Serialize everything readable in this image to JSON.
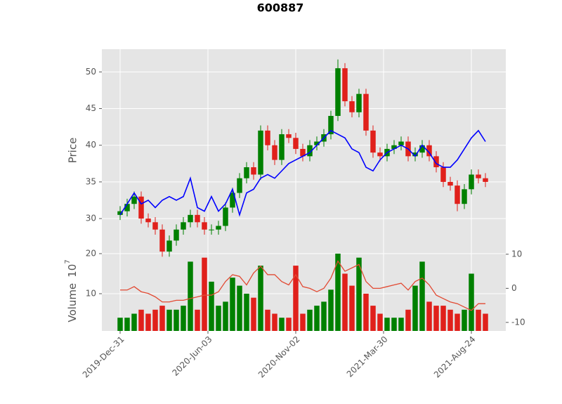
{
  "chart_data": {
    "type": "candlestick",
    "title": "600887",
    "y_label": "Price",
    "volume_label": "Volume",
    "volume_offset_base": "10",
    "volume_offset_exponent": "7",
    "x": [
      0,
      8,
      16,
      24,
      32,
      40,
      48,
      56,
      64,
      72,
      80,
      88,
      96,
      104,
      112,
      120,
      128,
      136,
      144,
      152,
      160,
      168,
      176,
      184,
      192,
      200,
      208,
      216,
      224,
      232,
      240,
      248,
      256,
      264,
      272,
      280,
      288,
      296,
      304,
      312,
      320,
      328,
      336,
      344,
      352,
      360,
      368,
      376,
      384,
      392,
      400,
      408,
      416
    ],
    "xlim": [
      -20.8,
      439.2
    ],
    "xticks": [
      {
        "value": 0,
        "label": "2019-Dec-31"
      },
      {
        "value": 100,
        "label": "2020-Jun-03"
      },
      {
        "value": 200,
        "label": "2020-Nov-02"
      },
      {
        "value": 300,
        "label": "2021-Mar-30"
      },
      {
        "value": 400,
        "label": "2021-Aug-24"
      }
    ],
    "open": [
      30.5,
      31,
      32,
      33,
      30,
      29.5,
      28.5,
      25.5,
      27,
      28.5,
      29.5,
      30.5,
      29.5,
      28.5,
      28.5,
      29,
      31.5,
      33.5,
      35.5,
      37,
      36,
      42,
      40,
      38,
      41.5,
      41,
      39.5,
      38.5,
      40,
      40.5,
      41.5,
      44,
      50.5,
      46,
      44.5,
      47,
      42,
      39,
      38.5,
      39.5,
      40,
      40.5,
      38.5,
      39,
      40,
      38.5,
      37,
      35,
      34.5,
      32,
      34,
      36,
      35.5
    ],
    "high": [
      31.7,
      32.7,
      33.7,
      33.7,
      30.7,
      30.2,
      29.2,
      27.7,
      29.2,
      30.2,
      31.2,
      31.2,
      30.2,
      29.2,
      29.7,
      32.2,
      34.2,
      36.2,
      37.7,
      37.7,
      42.7,
      42.7,
      40.7,
      42.2,
      42.2,
      41.7,
      40.2,
      40.7,
      41.2,
      42.2,
      44.7,
      51.7,
      51.2,
      46.7,
      47.7,
      47.7,
      42.7,
      39.7,
      40.2,
      40.7,
      41.2,
      41.2,
      39.7,
      40.7,
      40.7,
      39.2,
      37.7,
      35.7,
      35.2,
      34.7,
      36.7,
      36.7,
      36.2
    ],
    "low": [
      29.8,
      30.3,
      31.3,
      29.3,
      28.8,
      27.8,
      24.8,
      24.8,
      26.3,
      27.8,
      28.8,
      28.8,
      27.8,
      27.8,
      27.8,
      28.3,
      30.8,
      32.8,
      34.8,
      35.3,
      35.3,
      39.3,
      37.3,
      37.3,
      40.3,
      38.8,
      37.8,
      37.8,
      39.3,
      39.8,
      40.8,
      43.3,
      45.3,
      43.8,
      43.8,
      41.3,
      38.3,
      37.8,
      37.8,
      38.8,
      39.3,
      37.8,
      37.8,
      38.3,
      37.8,
      36.3,
      34.3,
      33.8,
      31.0,
      31.3,
      33.3,
      34.8,
      34.3
    ],
    "close": [
      31,
      32,
      33,
      30,
      29.5,
      28.5,
      25.5,
      27,
      28.5,
      29.5,
      30.5,
      29.5,
      28.5,
      28.5,
      29,
      31.5,
      33.5,
      35.5,
      37,
      36,
      42,
      40,
      38,
      41.5,
      41,
      39.5,
      38.5,
      40,
      40.5,
      41.5,
      44,
      50.5,
      46,
      44.5,
      47,
      42,
      39,
      38.5,
      39.5,
      40,
      40.5,
      38.5,
      39,
      40,
      38.5,
      37,
      35,
      34.5,
      32,
      34,
      36,
      35.5,
      35
    ],
    "up_color": "#008000",
    "down_color": "#e0201b",
    "ylim": [
      25.6,
      53.1
    ],
    "yticks": [
      30,
      35,
      40,
      45,
      50
    ],
    "overlay": {
      "color": "#0000ff",
      "values": [
        30.5,
        32,
        33.5,
        32,
        32.5,
        31.5,
        32.5,
        33,
        32.5,
        33,
        35.5,
        31.5,
        31,
        33,
        31,
        32,
        34,
        30.5,
        33.5,
        34,
        35.5,
        36,
        35.5,
        36.5,
        37.5,
        38,
        38.5,
        39,
        40,
        41,
        42,
        41.5,
        41,
        39.5,
        39,
        37,
        36.5,
        38,
        39,
        39.5,
        40,
        39.5,
        38.5,
        40,
        39,
        37.5,
        37,
        37,
        38,
        39.5,
        41,
        42,
        40.5
      ]
    },
    "volume": [
      4,
      4,
      5,
      6,
      5,
      6,
      7,
      6,
      6,
      7,
      18,
      6,
      19,
      13,
      7,
      8,
      14,
      12,
      10,
      9,
      17,
      6,
      5,
      4,
      4,
      17,
      5,
      6,
      7,
      8,
      11,
      20,
      15,
      12,
      19,
      10,
      7,
      5,
      4,
      4,
      4,
      6,
      12,
      18,
      8,
      7,
      7,
      6,
      5,
      6,
      15,
      6,
      5
    ],
    "volume_ylim": [
      0.7,
      20.7
    ],
    "volume_yticks": [
      10,
      20
    ],
    "indicator": {
      "axis": "y2",
      "color": "#e24a33",
      "values": [
        -0.5,
        -0.5,
        0.5,
        -1,
        -1.5,
        -2.5,
        -4,
        -4,
        -3.5,
        -3.5,
        -3,
        -2.5,
        -2,
        -2,
        -1,
        2,
        4,
        3.5,
        1,
        4.5,
        6.5,
        4,
        4,
        2,
        1,
        4,
        0.5,
        0,
        -1,
        0,
        3,
        8,
        5,
        6,
        7,
        2,
        0,
        0,
        0.5,
        1,
        1.5,
        -0.5,
        2,
        3,
        1,
        -2,
        -3,
        -4,
        -4.5,
        -5.5,
        -6.5,
        -4.5,
        -4.5
      ]
    },
    "y2lim": [
      -12.5,
      11.0
    ],
    "y2ticks": [
      -10,
      0,
      10
    ],
    "grid": true
  }
}
